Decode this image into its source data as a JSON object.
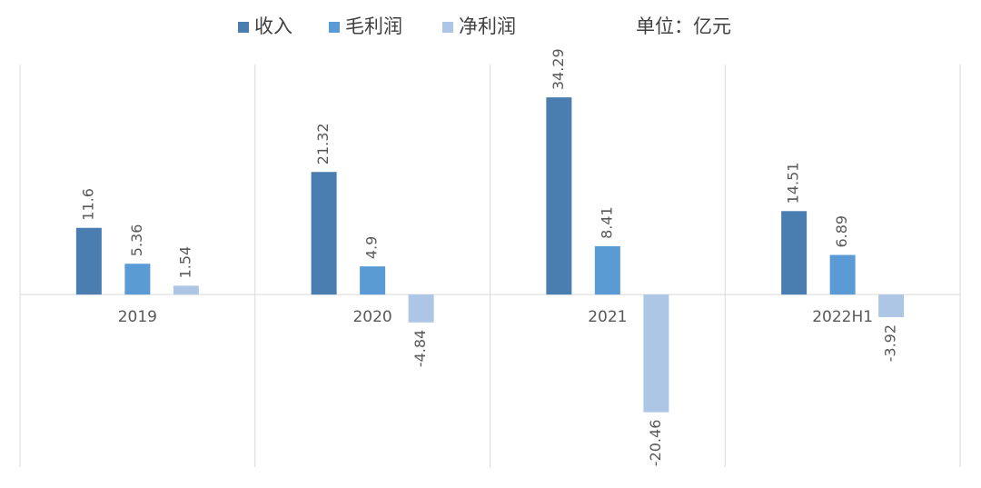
{
  "chart_data": {
    "type": "bar",
    "annotation": "单位：亿元",
    "categories": [
      "2019",
      "2020",
      "2021",
      "2022H1"
    ],
    "series": [
      {
        "name": "收入",
        "color": "#4a7eb0",
        "values": [
          11.6,
          21.32,
          34.29,
          14.51
        ]
      },
      {
        "name": "毛利润",
        "color": "#5b9bd5",
        "values": [
          5.36,
          4.9,
          8.41,
          6.89
        ]
      },
      {
        "name": "净利润",
        "color": "#adc6e6",
        "values": [
          1.54,
          -4.84,
          -20.46,
          -3.92
        ]
      }
    ],
    "ylim": [
      -30,
      40
    ],
    "legend": "top"
  }
}
